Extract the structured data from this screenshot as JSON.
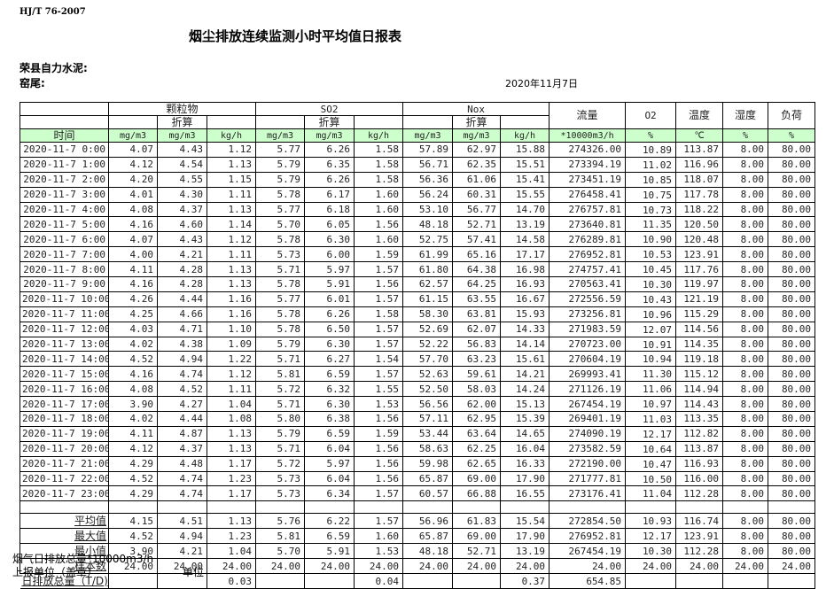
{
  "header": {
    "standard": "HJ/T  76-2007",
    "title": "烟尘排放连续监测小时平均值日报表",
    "company": "荣县自力水泥:",
    "kiln": "窑尾:",
    "date": "2020年11月7日"
  },
  "table": {
    "groups": {
      "pm": "颗粒物",
      "so2": "SO2",
      "nox": "Nox",
      "flow": "流量",
      "o2": "O2",
      "temp": "温度",
      "humidity": "湿度",
      "load": "负荷"
    },
    "converted_label": "折算",
    "time_label": "时间",
    "units": [
      "mg/m3",
      "mg/m3",
      "kg/h",
      "mg/m3",
      "mg/m3",
      "kg/h",
      "mg/m3",
      "mg/m3",
      "kg/h",
      "*10000m3/h",
      "%",
      "℃",
      "%",
      "%"
    ],
    "rows": [
      [
        "2020-11-7 0:00",
        "4.07",
        "4.43",
        "1.12",
        "5.77",
        "6.26",
        "1.58",
        "57.89",
        "62.97",
        "15.88",
        "274326.00",
        "10.89",
        "113.87",
        "8.00",
        "80.00"
      ],
      [
        "2020-11-7 1:00",
        "4.12",
        "4.54",
        "1.13",
        "5.79",
        "6.35",
        "1.58",
        "56.71",
        "62.35",
        "15.51",
        "273394.19",
        "11.02",
        "116.96",
        "8.00",
        "80.00"
      ],
      [
        "2020-11-7 2:00",
        "4.20",
        "4.55",
        "1.15",
        "5.79",
        "6.26",
        "1.58",
        "56.36",
        "61.06",
        "15.41",
        "273451.19",
        "10.85",
        "118.07",
        "8.00",
        "80.00"
      ],
      [
        "2020-11-7 3:00",
        "4.01",
        "4.30",
        "1.11",
        "5.78",
        "6.17",
        "1.60",
        "56.24",
        "60.31",
        "15.55",
        "276458.41",
        "10.75",
        "117.78",
        "8.00",
        "80.00"
      ],
      [
        "2020-11-7 4:00",
        "4.08",
        "4.37",
        "1.13",
        "5.77",
        "6.18",
        "1.60",
        "53.10",
        "56.77",
        "14.70",
        "276757.81",
        "10.73",
        "118.22",
        "8.00",
        "80.00"
      ],
      [
        "2020-11-7 5:00",
        "4.16",
        "4.60",
        "1.14",
        "5.70",
        "6.05",
        "1.56",
        "48.18",
        "52.71",
        "13.19",
        "273640.81",
        "11.35",
        "120.50",
        "8.00",
        "80.00"
      ],
      [
        "2020-11-7 6:00",
        "4.07",
        "4.43",
        "1.12",
        "5.78",
        "6.30",
        "1.60",
        "52.75",
        "57.41",
        "14.58",
        "276289.81",
        "10.90",
        "120.48",
        "8.00",
        "80.00"
      ],
      [
        "2020-11-7 7:00",
        "4.00",
        "4.21",
        "1.11",
        "5.73",
        "6.00",
        "1.59",
        "61.99",
        "65.16",
        "17.17",
        "276952.81",
        "10.53",
        "123.91",
        "8.00",
        "80.00"
      ],
      [
        "2020-11-7 8:00",
        "4.11",
        "4.28",
        "1.13",
        "5.71",
        "5.97",
        "1.57",
        "61.80",
        "64.38",
        "16.98",
        "274757.41",
        "10.45",
        "117.76",
        "8.00",
        "80.00"
      ],
      [
        "2020-11-7 9:00",
        "4.16",
        "4.28",
        "1.13",
        "5.78",
        "5.91",
        "1.56",
        "62.57",
        "64.25",
        "16.93",
        "270563.41",
        "10.30",
        "119.97",
        "8.00",
        "80.00"
      ],
      [
        "2020-11-7 10:00",
        "4.26",
        "4.44",
        "1.16",
        "5.77",
        "6.01",
        "1.57",
        "61.15",
        "63.55",
        "16.67",
        "272556.59",
        "10.43",
        "121.19",
        "8.00",
        "80.00"
      ],
      [
        "2020-11-7 11:00",
        "4.25",
        "4.66",
        "1.16",
        "5.78",
        "6.26",
        "1.58",
        "58.30",
        "63.81",
        "15.93",
        "273256.81",
        "10.96",
        "115.29",
        "8.00",
        "80.00"
      ],
      [
        "2020-11-7 12:00",
        "4.03",
        "4.71",
        "1.10",
        "5.78",
        "6.50",
        "1.57",
        "52.69",
        "62.07",
        "14.33",
        "271983.59",
        "12.07",
        "114.56",
        "8.00",
        "80.00"
      ],
      [
        "2020-11-7 13:00",
        "4.02",
        "4.38",
        "1.09",
        "5.79",
        "6.30",
        "1.57",
        "52.22",
        "56.83",
        "14.14",
        "270723.00",
        "10.91",
        "114.35",
        "8.00",
        "80.00"
      ],
      [
        "2020-11-7 14:00",
        "4.52",
        "4.94",
        "1.22",
        "5.71",
        "6.27",
        "1.54",
        "57.70",
        "63.23",
        "15.61",
        "270604.19",
        "10.94",
        "119.18",
        "8.00",
        "80.00"
      ],
      [
        "2020-11-7 15:00",
        "4.16",
        "4.74",
        "1.12",
        "5.81",
        "6.59",
        "1.57",
        "52.63",
        "59.61",
        "14.21",
        "269993.41",
        "11.30",
        "115.12",
        "8.00",
        "80.00"
      ],
      [
        "2020-11-7 16:00",
        "4.08",
        "4.52",
        "1.11",
        "5.72",
        "6.32",
        "1.55",
        "52.50",
        "58.03",
        "14.24",
        "271126.19",
        "11.06",
        "114.94",
        "8.00",
        "80.00"
      ],
      [
        "2020-11-7 17:00",
        "3.90",
        "4.27",
        "1.04",
        "5.71",
        "6.30",
        "1.53",
        "56.56",
        "62.00",
        "15.13",
        "267454.19",
        "10.97",
        "114.43",
        "8.00",
        "80.00"
      ],
      [
        "2020-11-7 18:00",
        "4.02",
        "4.44",
        "1.08",
        "5.80",
        "6.38",
        "1.56",
        "57.11",
        "62.95",
        "15.39",
        "269401.19",
        "11.03",
        "113.35",
        "8.00",
        "80.00"
      ],
      [
        "2020-11-7 19:00",
        "4.11",
        "4.87",
        "1.13",
        "5.79",
        "6.59",
        "1.59",
        "53.44",
        "63.64",
        "14.65",
        "274090.19",
        "12.17",
        "112.82",
        "8.00",
        "80.00"
      ],
      [
        "2020-11-7 20:00",
        "4.12",
        "4.37",
        "1.13",
        "5.71",
        "6.04",
        "1.56",
        "58.63",
        "62.25",
        "16.04",
        "273582.59",
        "10.64",
        "113.87",
        "8.00",
        "80.00"
      ],
      [
        "2020-11-7 21:00",
        "4.29",
        "4.48",
        "1.17",
        "5.72",
        "5.97",
        "1.56",
        "59.98",
        "62.65",
        "16.33",
        "272190.00",
        "10.47",
        "116.93",
        "8.00",
        "80.00"
      ],
      [
        "2020-11-7 22:00",
        "4.52",
        "4.74",
        "1.23",
        "5.73",
        "6.04",
        "1.56",
        "65.87",
        "69.00",
        "17.90",
        "271777.81",
        "10.50",
        "116.00",
        "8.00",
        "80.00"
      ],
      [
        "2020-11-7 23:00",
        "4.29",
        "4.74",
        "1.17",
        "5.73",
        "6.34",
        "1.57",
        "60.57",
        "66.88",
        "16.55",
        "273176.41",
        "11.04",
        "112.28",
        "8.00",
        "80.00"
      ]
    ],
    "summary": [
      [
        "平均值",
        "4.15",
        "4.51",
        "1.13",
        "5.76",
        "6.22",
        "1.57",
        "56.96",
        "61.83",
        "15.54",
        "272854.50",
        "10.93",
        "116.74",
        "8.00",
        "80.00"
      ],
      [
        "最大值",
        "4.52",
        "4.94",
        "1.23",
        "5.81",
        "6.59",
        "1.60",
        "65.87",
        "69.00",
        "17.90",
        "276952.81",
        "12.17",
        "123.91",
        "8.00",
        "80.00"
      ],
      [
        "最小值",
        "3.90",
        "4.21",
        "1.04",
        "5.70",
        "5.91",
        "1.53",
        "48.18",
        "52.71",
        "13.19",
        "267454.19",
        "10.30",
        "112.28",
        "8.00",
        "80.00"
      ],
      [
        "样本数",
        "24.00",
        "24.00",
        "24.00",
        "24.00",
        "24.00",
        "24.00",
        "24.00",
        "24.00",
        "24.00",
        "24.00",
        "24.00",
        "24.00",
        "24.00",
        "24.00"
      ],
      [
        "日排放总量（T/D)",
        "",
        "",
        "0.03",
        "",
        "",
        "0.04",
        "",
        "",
        "0.37",
        "654.85",
        "",
        "",
        "",
        ""
      ]
    ]
  },
  "footer": {
    "flue_gas_total": "烟气日排放总量*10000m3/h",
    "reporting_unit": "上报单位（盖章）",
    "unit": "单位"
  },
  "colors": {
    "unit_row_bg": "#ccffcc"
  }
}
